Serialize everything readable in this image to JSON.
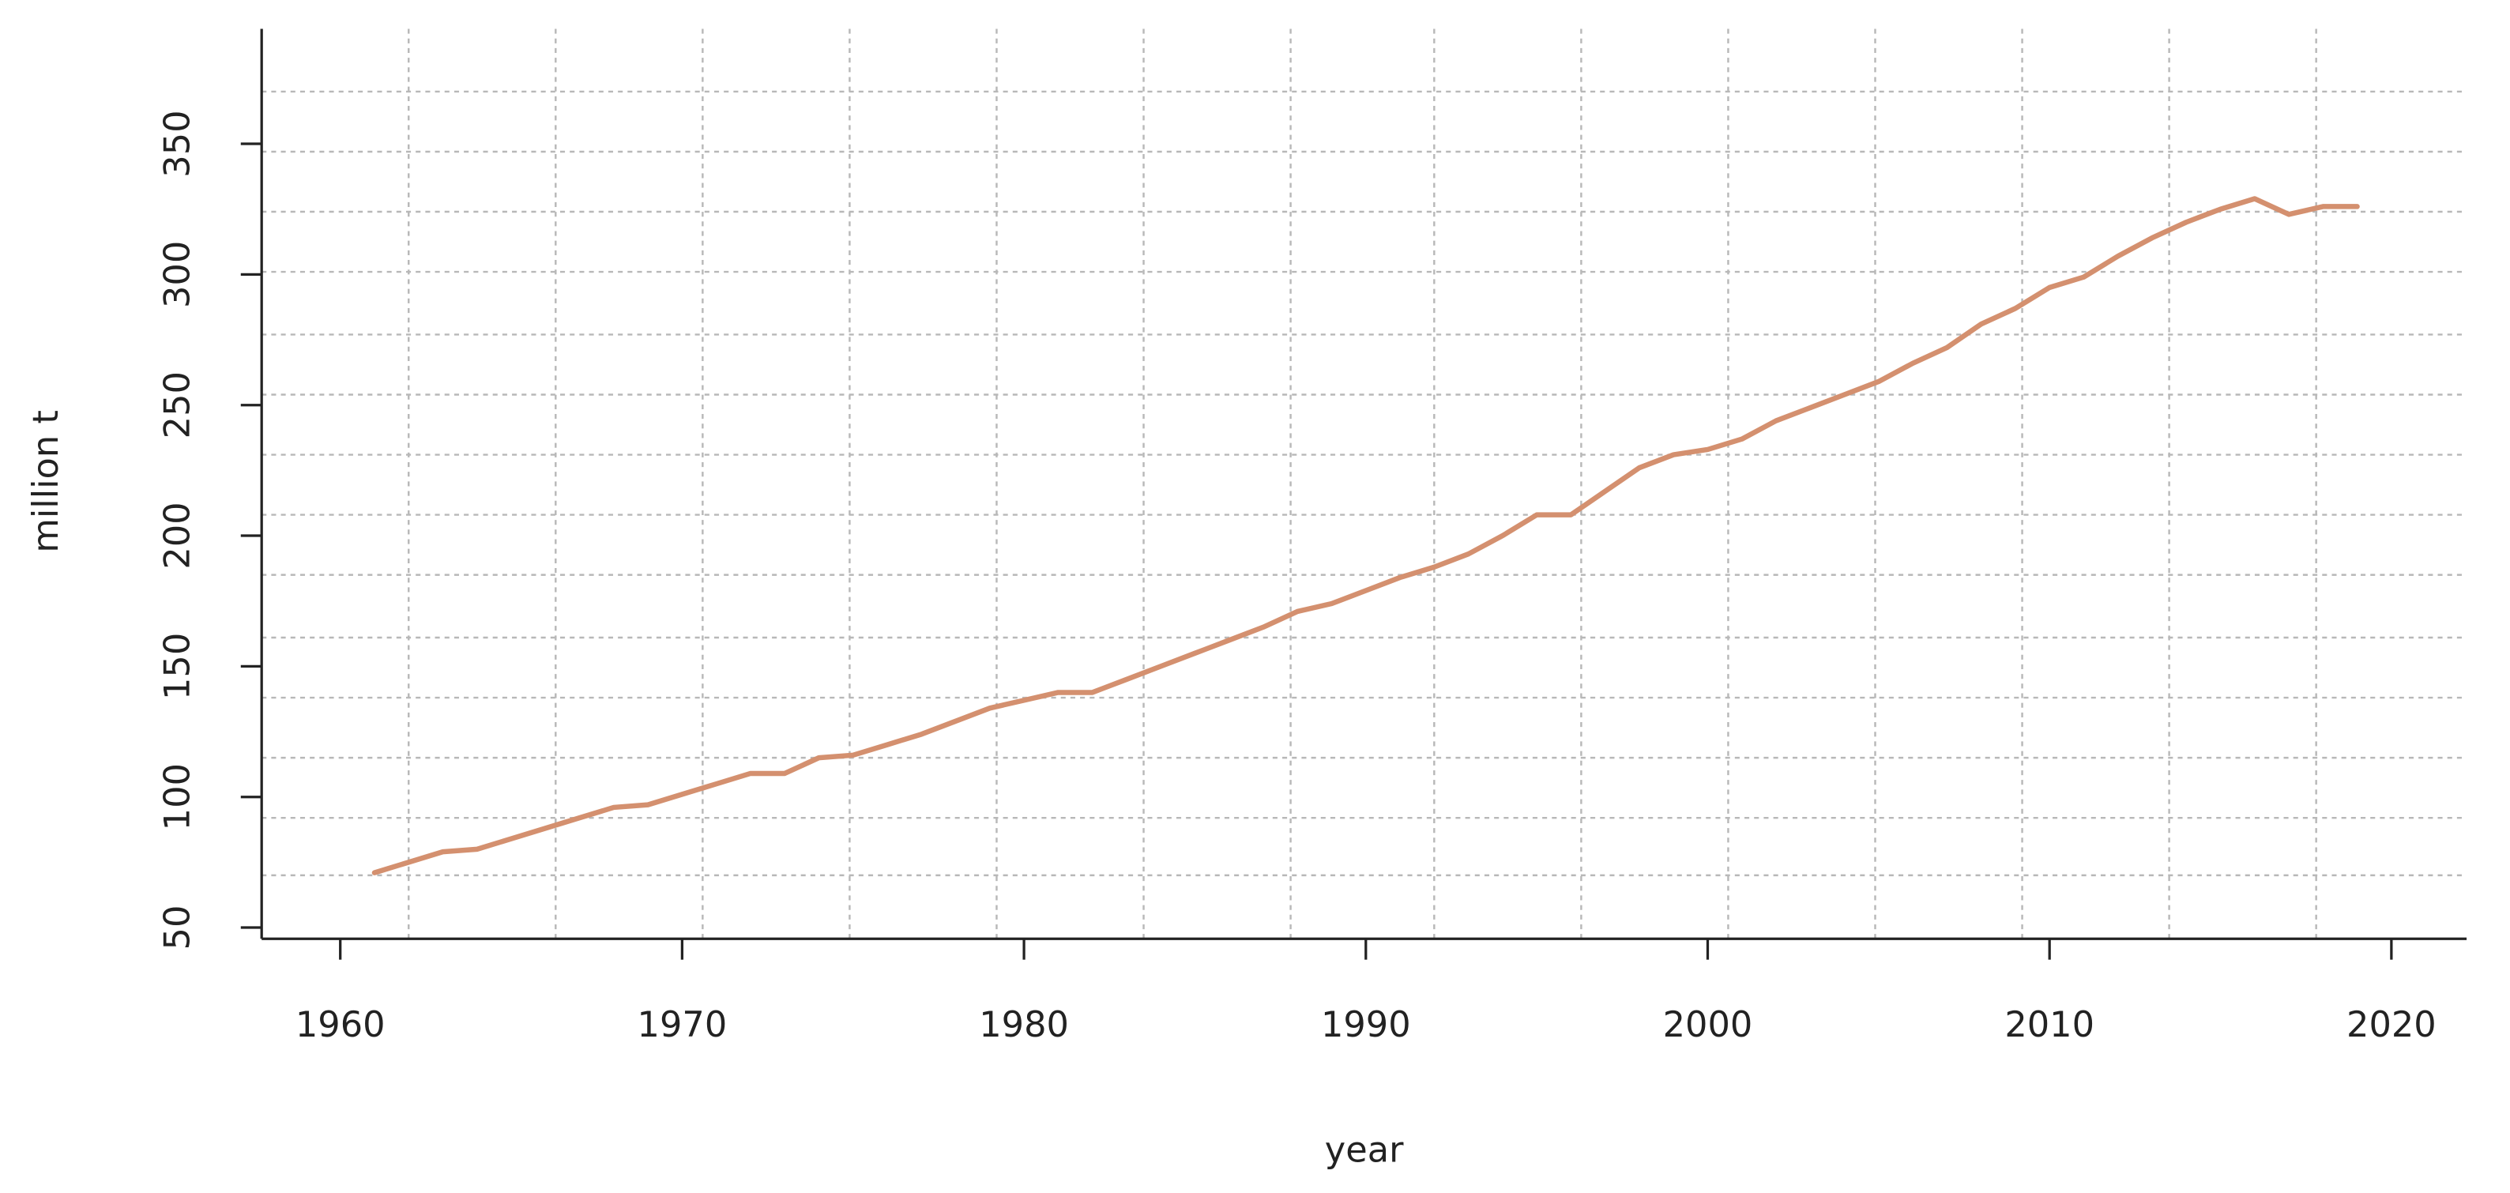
{
  "chart_data": {
    "type": "line",
    "x_label": "year",
    "y_label": "million t",
    "x": [
      1961,
      1962,
      1963,
      1964,
      1965,
      1966,
      1967,
      1968,
      1969,
      1970,
      1971,
      1972,
      1973,
      1974,
      1975,
      1976,
      1977,
      1978,
      1979,
      1980,
      1981,
      1982,
      1983,
      1984,
      1985,
      1986,
      1987,
      1988,
      1989,
      1990,
      1991,
      1992,
      1993,
      1994,
      1995,
      1996,
      1997,
      1998,
      1999,
      2000,
      2001,
      2002,
      2003,
      2004,
      2005,
      2006,
      2007,
      2008,
      2009,
      2010,
      2011,
      2012,
      2013,
      2014,
      2015,
      2016,
      2017,
      2018,
      2019
    ],
    "values": [
      71,
      75,
      79,
      80,
      84,
      88,
      92,
      96,
      97,
      101,
      105,
      109,
      109,
      115,
      116,
      120,
      124,
      129,
      134,
      137,
      140,
      140,
      145,
      150,
      155,
      160,
      165,
      171,
      174,
      179,
      184,
      188,
      193,
      200,
      208,
      208,
      217,
      226,
      231,
      233,
      237,
      244,
      249,
      254,
      259,
      266,
      272,
      281,
      287,
      295,
      299,
      307,
      314,
      320,
      325,
      329,
      323,
      326,
      326
    ],
    "color": "#d4906f",
    "xlim": [
      1957.7,
      2022.2
    ],
    "ylim": [
      45.7,
      394
    ],
    "xticks": [
      1960,
      1970,
      1980,
      1990,
      2000,
      2010,
      2020
    ],
    "yticks": [
      50,
      100,
      150,
      200,
      250,
      300,
      350
    ],
    "grid": true,
    "xgrid": [
      1962.0,
      1966.3,
      1970.6,
      1974.9,
      1979.2,
      1983.5,
      1987.8,
      1992.0,
      1996.3,
      2000.6,
      2004.9,
      2009.2,
      2013.5,
      2017.8
    ],
    "ygrid": [
      70,
      92,
      115,
      138,
      161,
      185,
      208,
      231,
      254,
      277,
      301,
      324,
      347,
      370
    ]
  }
}
